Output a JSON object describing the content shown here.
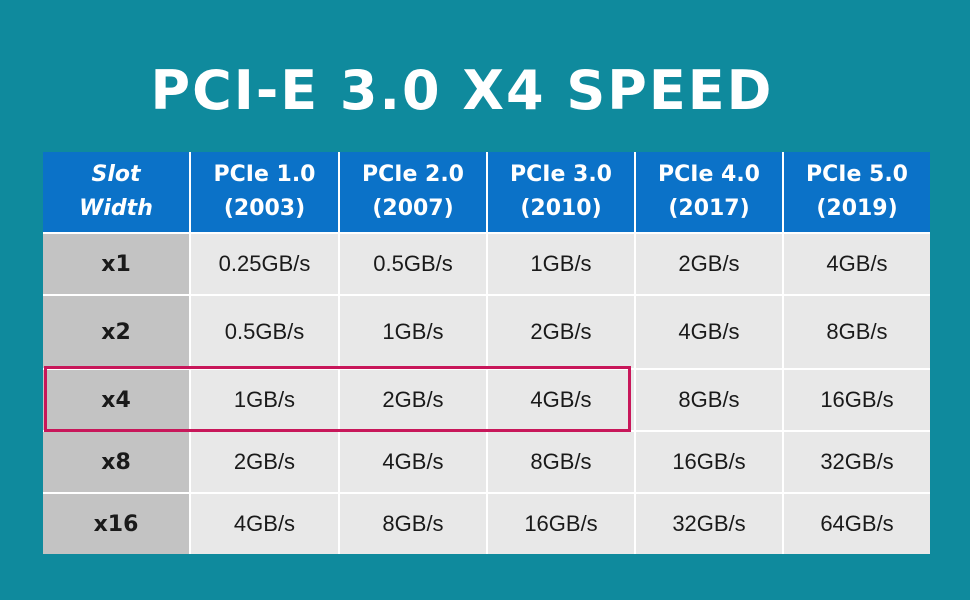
{
  "title": "PCI-E 3.0 X4 SPEED",
  "table": {
    "header_first": [
      "Slot",
      "Width"
    ],
    "columns": [
      {
        "name": "PCIe 1.0",
        "year": "(2003)"
      },
      {
        "name": "PCIe 2.0",
        "year": "(2007)"
      },
      {
        "name": "PCIe 3.0",
        "year": "(2010)"
      },
      {
        "name": "PCIe 4.0",
        "year": "(2017)"
      },
      {
        "name": "PCIe 5.0",
        "year": "(2019)"
      }
    ],
    "rows": [
      {
        "width": "x1",
        "values": [
          "0.25GB/s",
          "0.5GB/s",
          "1GB/s",
          "2GB/s",
          "4GB/s"
        ]
      },
      {
        "width": "x2",
        "values": [
          "0.5GB/s",
          "1GB/s",
          "2GB/s",
          "4GB/s",
          "8GB/s"
        ]
      },
      {
        "width": "x4",
        "values": [
          "1GB/s",
          "2GB/s",
          "4GB/s",
          "8GB/s",
          "16GB/s"
        ]
      },
      {
        "width": "x8",
        "values": [
          "2GB/s",
          "4GB/s",
          "8GB/s",
          "16GB/s",
          "32GB/s"
        ]
      },
      {
        "width": "x16",
        "values": [
          "4GB/s",
          "8GB/s",
          "16GB/s",
          "32GB/s",
          "64GB/s"
        ]
      }
    ],
    "highlight": {
      "row": 2,
      "columns": [
        0,
        1,
        2
      ],
      "color": "#c8175a"
    }
  },
  "colors": {
    "background": "#0f8a9d",
    "header": "#0b72c8",
    "row_header": "#c3c3c3",
    "cell": "#e8e8e8"
  }
}
